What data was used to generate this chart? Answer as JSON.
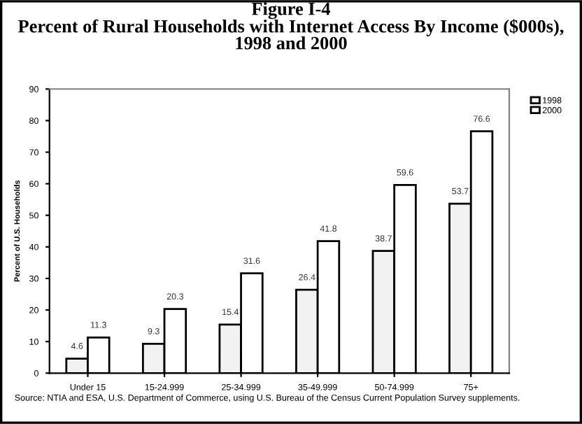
{
  "chart_data": {
    "type": "bar",
    "title": "Figure I-4\nPercent of Rural Households with Internet Access By Income ($000s),\n1998 and 2000",
    "ylabel": "Percent of U.S. Households",
    "categories": [
      "Under 15",
      "15-24.999",
      "25-34.999",
      "35-49.999",
      "50-74.999",
      "75+"
    ],
    "series": [
      {
        "name": "1998",
        "color": "#f2f2f2",
        "values": [
          4.6,
          9.3,
          15.4,
          26.4,
          38.7,
          53.7
        ]
      },
      {
        "name": "2000",
        "color": "#ffffff",
        "values": [
          11.3,
          20.3,
          31.6,
          41.8,
          59.6,
          76.6
        ]
      }
    ],
    "ylim": [
      0,
      90
    ],
    "yticks": [
      0,
      10,
      20,
      30,
      40,
      50,
      60,
      70,
      80,
      90
    ],
    "data_labels": true,
    "grid": false,
    "legend": "top right",
    "annotations": [
      "Source: NTIA and ESA, U.S. Department of Commerce, using U.S. Bureau of the Census Current Population Survey supplements."
    ]
  }
}
